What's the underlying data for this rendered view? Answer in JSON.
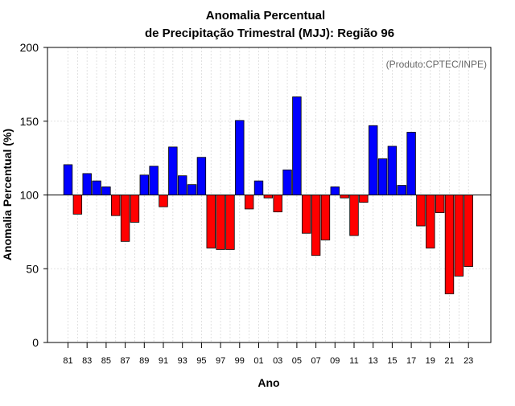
{
  "chart_data": {
    "type": "bar",
    "title_line1": "Anomalia Percentual",
    "title_line2": "de Precipitação Trimestral (MJJ): Região 96",
    "source_note": "(Produto:CPTEC/INPE)",
    "xlabel": "Ano",
    "ylabel": "Anomalia Percentual (%)",
    "ylim": [
      0,
      200
    ],
    "yticks": [
      0,
      50,
      100,
      150,
      200
    ],
    "baseline": 100,
    "grid": true,
    "colors": {
      "above": "#0000ff",
      "below": "#ff0000",
      "stroke": "#000000",
      "grid": "#d9d9d9",
      "note": "#666666"
    },
    "categories": [
      "81",
      "82",
      "83",
      "84",
      "85",
      "86",
      "87",
      "88",
      "89",
      "90",
      "91",
      "92",
      "93",
      "94",
      "95",
      "96",
      "97",
      "98",
      "99",
      "00",
      "01",
      "02",
      "03",
      "04",
      "05",
      "06",
      "07",
      "08",
      "09",
      "10",
      "11",
      "12",
      "13",
      "14",
      "15",
      "16",
      "17",
      "18",
      "19",
      "20",
      "21",
      "22",
      "23"
    ],
    "tick_labels": [
      "81",
      "83",
      "85",
      "87",
      "89",
      "91",
      "93",
      "95",
      "97",
      "99",
      "01",
      "03",
      "05",
      "07",
      "09",
      "11",
      "13",
      "15",
      "17",
      "19",
      "21",
      "23"
    ],
    "values": [
      120.5,
      87,
      114.5,
      109.5,
      105.5,
      86,
      68.5,
      81.5,
      113.5,
      119.5,
      92,
      132.5,
      113,
      107,
      125.5,
      64,
      63,
      63,
      150.5,
      90.5,
      109.5,
      98,
      88.5,
      117,
      166.5,
      74,
      59,
      69.5,
      105.5,
      98,
      72.5,
      95,
      147,
      124.5,
      133,
      106.5,
      142.5,
      79,
      64,
      88,
      33,
      45,
      51.5
    ]
  }
}
